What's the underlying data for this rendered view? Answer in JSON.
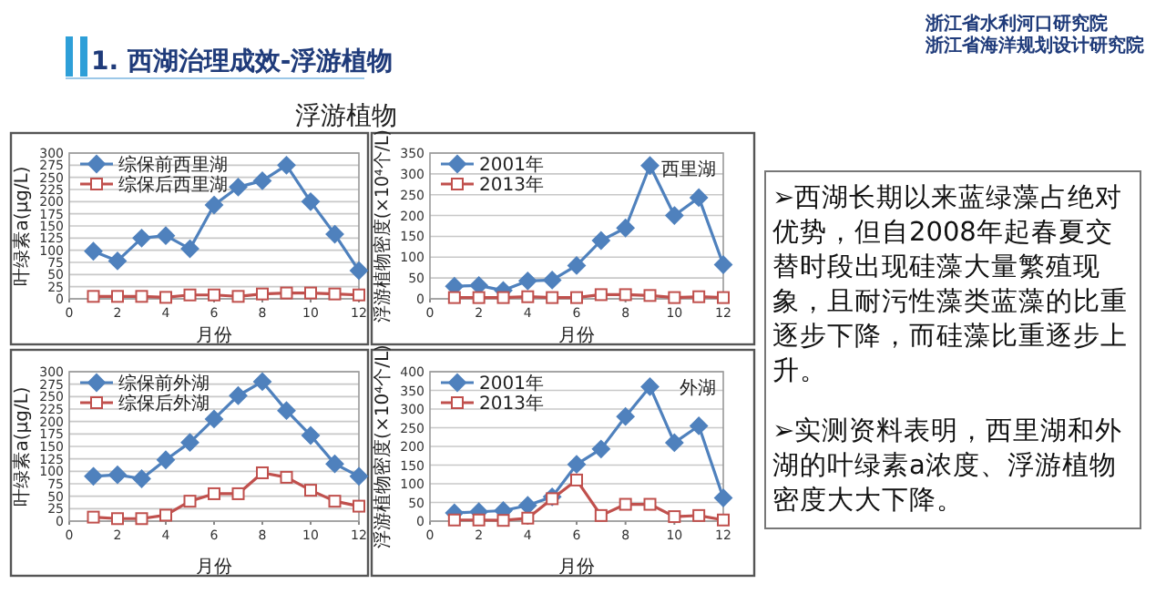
{
  "chart_data": [
    {
      "type": "line",
      "title": "浮游植物",
      "x": [
        1,
        2,
        3,
        4,
        5,
        6,
        7,
        8,
        9,
        10,
        11,
        12
      ],
      "xlim": [
        0,
        12
      ],
      "xticks": [
        0,
        2,
        4,
        6,
        8,
        10,
        12
      ],
      "ylim": [
        0,
        300
      ],
      "yticks": [
        0,
        25,
        50,
        75,
        100,
        125,
        150,
        175,
        200,
        225,
        250,
        275,
        300
      ],
      "xlabel": "月份",
      "ylabel": "叶绿素a(μg/L)",
      "grid": "y",
      "legend": "top left",
      "series": [
        {
          "name": "综保前西里湖",
          "color": "#4f81bd",
          "marker": "diamond",
          "values": [
            98,
            78,
            125,
            130,
            103,
            193,
            230,
            243,
            275,
            200,
            133,
            58
          ]
        },
        {
          "name": "综保后西里湖",
          "color": "#c0504d",
          "marker": "square",
          "values": [
            5,
            5,
            5,
            3,
            8,
            8,
            5,
            10,
            12,
            12,
            10,
            8
          ]
        }
      ]
    },
    {
      "type": "line",
      "x": [
        1,
        2,
        3,
        4,
        5,
        6,
        7,
        8,
        9,
        10,
        11,
        12
      ],
      "xlim": [
        0,
        12
      ],
      "xticks": [
        0,
        2,
        4,
        6,
        8,
        10,
        12
      ],
      "ylim": [
        0,
        350
      ],
      "yticks": [
        0,
        50,
        100,
        150,
        200,
        250,
        300,
        350
      ],
      "xlabel": "月份",
      "ylabel": "浮游植物密度(×10⁴个/L)",
      "grid": "y",
      "legend": "top left",
      "annotations": [
        "西里湖"
      ],
      "series": [
        {
          "name": "2001年",
          "color": "#4f81bd",
          "marker": "diamond",
          "values": [
            30,
            32,
            20,
            43,
            45,
            80,
            140,
            170,
            320,
            200,
            243,
            82
          ]
        },
        {
          "name": "2013年",
          "color": "#c0504d",
          "marker": "square",
          "values": [
            3,
            3,
            3,
            5,
            3,
            3,
            10,
            10,
            8,
            3,
            5,
            3
          ]
        }
      ]
    },
    {
      "type": "line",
      "x": [
        1,
        2,
        3,
        4,
        5,
        6,
        7,
        8,
        9,
        10,
        11,
        12
      ],
      "xlim": [
        0,
        12
      ],
      "xticks": [
        0,
        2,
        4,
        6,
        8,
        10,
        12
      ],
      "ylim": [
        0,
        300
      ],
      "yticks": [
        0,
        25,
        50,
        75,
        100,
        125,
        150,
        175,
        200,
        225,
        250,
        275,
        300
      ],
      "xlabel": "月份",
      "ylabel": "叶绿素a(μg/L)",
      "grid": "y",
      "legend": "top left",
      "series": [
        {
          "name": "综保前外湖",
          "color": "#4f81bd",
          "marker": "diamond",
          "values": [
            90,
            93,
            85,
            123,
            158,
            205,
            252,
            280,
            222,
            172,
            115,
            90
          ]
        },
        {
          "name": "综保后外湖",
          "color": "#c0504d",
          "marker": "square",
          "values": [
            8,
            5,
            5,
            12,
            40,
            55,
            55,
            97,
            88,
            62,
            40,
            30
          ]
        }
      ]
    },
    {
      "type": "line",
      "x": [
        1,
        2,
        3,
        4,
        5,
        6,
        7,
        8,
        9,
        10,
        11,
        12
      ],
      "xlim": [
        0,
        12
      ],
      "xticks": [
        0,
        2,
        4,
        6,
        8,
        10,
        12
      ],
      "ylim": [
        0,
        400
      ],
      "yticks": [
        0,
        50,
        100,
        150,
        200,
        250,
        300,
        350,
        400
      ],
      "xlabel": "月份",
      "ylabel": "浮游植物密度(×10⁴个/L)",
      "grid": "y",
      "legend": "top left",
      "annotations": [
        "外湖"
      ],
      "series": [
        {
          "name": "2001年",
          "color": "#4f81bd",
          "marker": "diamond",
          "values": [
            22,
            25,
            28,
            42,
            65,
            152,
            193,
            280,
            360,
            210,
            255,
            62
          ]
        },
        {
          "name": "2013年",
          "color": "#c0504d",
          "marker": "square",
          "values": [
            3,
            3,
            2,
            8,
            60,
            110,
            15,
            45,
            45,
            12,
            15,
            3
          ]
        }
      ]
    },
    {
      "type": "other",
      "title": "1. 西湖治理成效-浮游植物",
      "annotations": [
        "浙江省水利河口研究院",
        "浙江省海洋规划设计研究院",
        "➢西湖长期以来蓝绿藻占绝对优势，但自2008年起春夏交替时段出现硅藻大量繁殖现象，且耐污性藻类蓝藻的比重逐步下降，而硅藻比重逐步上升。",
        "➢实测资料表明，西里湖和外湖的叶绿素a浓度、浮游植物密度大大下降。"
      ]
    }
  ]
}
